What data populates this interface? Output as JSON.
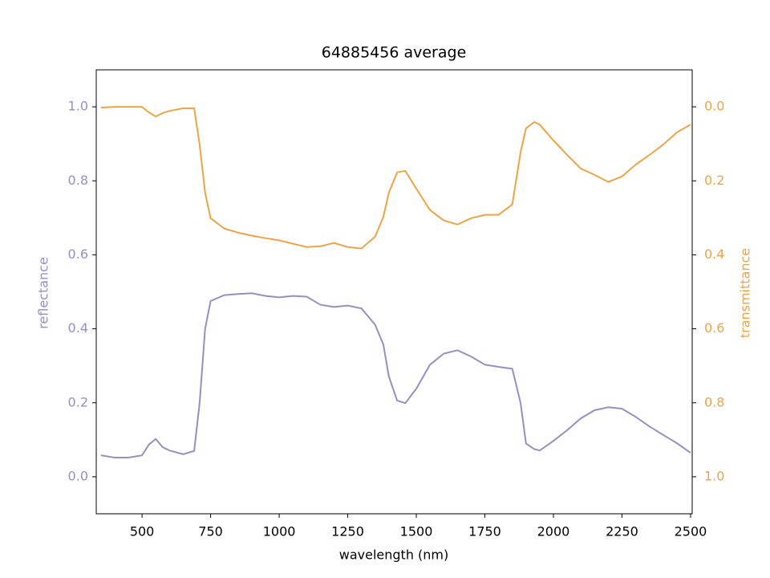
{
  "chart_data": {
    "type": "line",
    "title": "64885456 average",
    "xlabel": "wavelength (nm)",
    "ylabel": "reflectance",
    "y2label": "transmittance",
    "x": [
      350,
      400,
      450,
      500,
      525,
      550,
      575,
      600,
      650,
      690,
      710,
      730,
      750,
      800,
      850,
      900,
      950,
      1000,
      1050,
      1100,
      1150,
      1200,
      1250,
      1300,
      1350,
      1380,
      1400,
      1430,
      1460,
      1500,
      1550,
      1600,
      1650,
      1700,
      1750,
      1800,
      1850,
      1880,
      1900,
      1930,
      1950,
      2000,
      2050,
      2100,
      2150,
      2200,
      2250,
      2300,
      2350,
      2400,
      2450,
      2500
    ],
    "series": [
      {
        "name": "reflectance",
        "color": "#9590c3",
        "values": [
          0.058,
          0.052,
          0.052,
          0.058,
          0.087,
          0.102,
          0.08,
          0.071,
          0.061,
          0.07,
          0.2,
          0.4,
          0.475,
          0.491,
          0.494,
          0.496,
          0.489,
          0.485,
          0.489,
          0.487,
          0.465,
          0.459,
          0.463,
          0.455,
          0.411,
          0.357,
          0.271,
          0.206,
          0.199,
          0.238,
          0.303,
          0.333,
          0.342,
          0.325,
          0.303,
          0.297,
          0.292,
          0.2,
          0.09,
          0.075,
          0.071,
          0.097,
          0.126,
          0.158,
          0.18,
          0.188,
          0.184,
          0.162,
          0.136,
          0.113,
          0.091,
          0.065
        ]
      },
      {
        "name": "transmittance",
        "color": "#eea444",
        "axis": "y2",
        "values": [
          0.002,
          0,
          0,
          0,
          0.015,
          0.026,
          0.017,
          0.011,
          0.004,
          0.004,
          0.102,
          0.232,
          0.301,
          0.329,
          0.34,
          0.348,
          0.355,
          0.361,
          0.37,
          0.379,
          0.377,
          0.368,
          0.379,
          0.383,
          0.351,
          0.297,
          0.232,
          0.177,
          0.173,
          0.221,
          0.279,
          0.307,
          0.318,
          0.301,
          0.292,
          0.292,
          0.264,
          0.123,
          0.058,
          0.041,
          0.048,
          0.091,
          0.13,
          0.167,
          0.184,
          0.203,
          0.188,
          0.156,
          0.13,
          0.102,
          0.069,
          0.048
        ]
      }
    ],
    "xlim": [
      333,
      2506
    ],
    "xticks": [
      500,
      750,
      1000,
      1250,
      1500,
      1750,
      2000,
      2250,
      2500
    ],
    "ylim": [
      -0.1,
      1.1
    ],
    "yticks": [
      {
        "value": 0,
        "label": "0.0"
      },
      0.2,
      0.4,
      0.6,
      0.8,
      {
        "value": 1,
        "label": "1.0"
      }
    ],
    "y2lim": [
      1.1,
      -0.1
    ],
    "y2ticks": [
      {
        "value": 0,
        "label": "0.0"
      },
      0.2,
      0.4,
      0.6,
      0.8,
      {
        "value": 1,
        "label": "1.0"
      }
    ]
  }
}
